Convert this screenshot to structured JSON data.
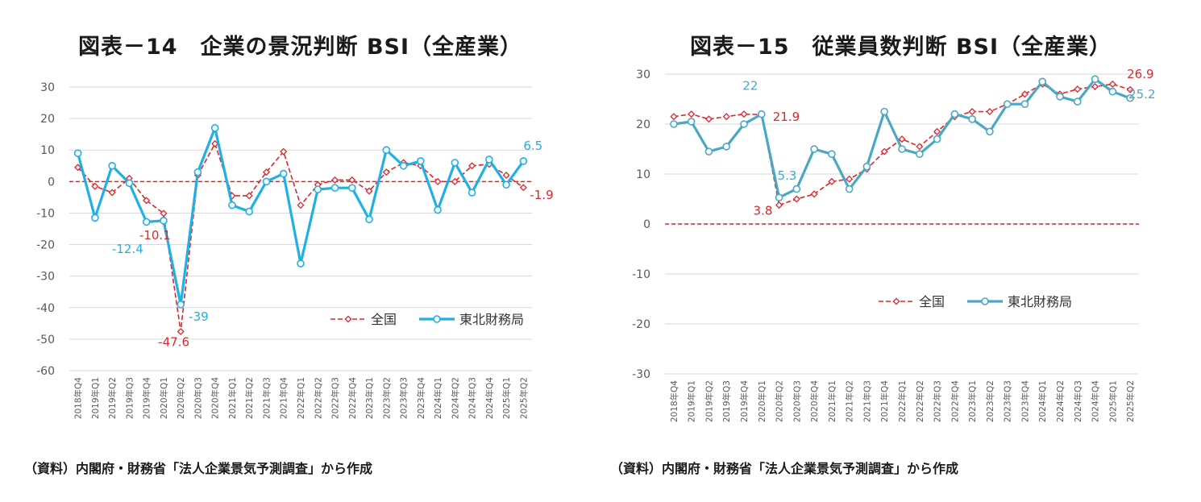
{
  "colors": {
    "national": "#e0262b",
    "tohoku": "#1fb0e6",
    "tohoku_right": "#4aa8c4",
    "grid": "#d9d9d9",
    "axis_text": "#595959"
  },
  "chart_data": [
    {
      "type": "line",
      "title": "図表－14　企業の景況判断 BSI（全産業）",
      "categories": [
        "2018年Q4",
        "2019年Q1",
        "2019年Q2",
        "2019年Q3",
        "2019年Q4",
        "2020年Q1",
        "2020年Q2",
        "2020年Q3",
        "2020年Q4",
        "2021年Q1",
        "2021年Q2",
        "2021年Q3",
        "2021年Q4",
        "2022年Q1",
        "2022年Q2",
        "2022年Q3",
        "2022年Q4",
        "2023年Q1",
        "2023年Q2",
        "2023年Q3",
        "2023年Q4",
        "2024年Q1",
        "2024年Q2",
        "2024年Q3",
        "2024年Q4",
        "2025年Q1",
        "2025年Q2"
      ],
      "ylim": [
        -60,
        30
      ],
      "yticks": [
        30,
        20,
        10,
        0,
        -10,
        -20,
        -30,
        -40,
        -50,
        -60
      ],
      "grid": true,
      "legend_position": "bottom-right",
      "series": [
        {
          "name": "全国",
          "style": "dashed",
          "marker": "diamond",
          "values": [
            4.5,
            -1.5,
            -3.5,
            1.0,
            -6.0,
            -10.1,
            -47.6,
            2.0,
            12.0,
            -4.5,
            -4.5,
            3.0,
            9.5,
            -7.5,
            -1.0,
            0.5,
            0.5,
            -3.0,
            3.0,
            6.0,
            5.0,
            0.0,
            0.0,
            5.0,
            5.5,
            2.0,
            -1.9
          ]
        },
        {
          "name": "東北財務局",
          "style": "solid",
          "marker": "circle",
          "values": [
            9.0,
            -11.5,
            5.0,
            -0.5,
            -12.8,
            -12.4,
            -39.0,
            3.0,
            17.0,
            -7.5,
            -9.5,
            0.0,
            2.5,
            -26.0,
            -2.5,
            -2.0,
            -2.0,
            -12.0,
            10.0,
            5.0,
            6.5,
            -9.0,
            6.0,
            -3.5,
            7.0,
            -1.0,
            6.5
          ]
        }
      ],
      "annotations": [
        {
          "series": "全国",
          "index": 5,
          "text": "-10.1"
        },
        {
          "series": "全国",
          "index": 6,
          "text": "-47.6"
        },
        {
          "series": "全国",
          "index": 26,
          "text": "-1.9"
        },
        {
          "series": "東北財務局",
          "index": 5,
          "text": "-12.4"
        },
        {
          "series": "東北財務局",
          "index": 6,
          "text": "-39"
        },
        {
          "series": "東北財務局",
          "index": 26,
          "text": "6.5"
        }
      ],
      "source": "（資料）内閣府・財務省「法人企業景気予測調査」から作成"
    },
    {
      "type": "line",
      "title": "図表－15　従業員数判断 BSI（全産業）",
      "categories": [
        "2018年Q4",
        "2019年Q1",
        "2019年Q2",
        "2019年Q3",
        "2019年Q4",
        "2020年Q1",
        "2020年Q2",
        "2020年Q3",
        "2020年Q4",
        "2021年Q1",
        "2021年Q2",
        "2021年Q3",
        "2021年Q4",
        "2022年Q1",
        "2022年Q2",
        "2022年Q3",
        "2022年Q4",
        "2023年Q1",
        "2023年Q2",
        "2023年Q3",
        "2023年Q4",
        "2024年Q1",
        "2024年Q2",
        "2024年Q3",
        "2024年Q4",
        "2025年Q1",
        "2025年Q2"
      ],
      "ylim": [
        -30,
        30
      ],
      "yticks": [
        30,
        20,
        10,
        0,
        -10,
        -20,
        -30
      ],
      "grid": true,
      "legend_position": "center",
      "series": [
        {
          "name": "全国",
          "style": "dashed",
          "marker": "diamond",
          "values": [
            21.5,
            22.0,
            21.0,
            21.5,
            22.0,
            21.9,
            3.8,
            5.0,
            6.0,
            8.5,
            9.0,
            11.0,
            14.5,
            17.0,
            15.5,
            18.5,
            21.5,
            22.5,
            22.5,
            24.0,
            26.0,
            28.0,
            26.0,
            27.0,
            27.5,
            28.0,
            26.9
          ]
        },
        {
          "name": "東北財務局",
          "style": "solid",
          "marker": "circle",
          "values": [
            20.0,
            20.5,
            14.5,
            15.5,
            20.0,
            22.0,
            5.3,
            7.0,
            15.0,
            14.0,
            7.0,
            11.5,
            22.5,
            15.0,
            14.0,
            17.0,
            22.0,
            21.0,
            18.5,
            24.0,
            24.0,
            28.5,
            25.5,
            24.5,
            29.0,
            26.5,
            25.2
          ]
        }
      ],
      "annotations": [
        {
          "series": "東北財務局",
          "index": 5,
          "text": "22"
        },
        {
          "series": "全国",
          "index": 5,
          "text": "21.9"
        },
        {
          "series": "東北財務局",
          "index": 6,
          "text": "5.3"
        },
        {
          "series": "全国",
          "index": 6,
          "text": "3.8"
        },
        {
          "series": "全国",
          "index": 26,
          "text": "26.9"
        },
        {
          "series": "東北財務局",
          "index": 26,
          "text": "25.2"
        }
      ],
      "source": "（資料）内閣府・財務省「法人企業景気予測調査」から作成"
    }
  ]
}
